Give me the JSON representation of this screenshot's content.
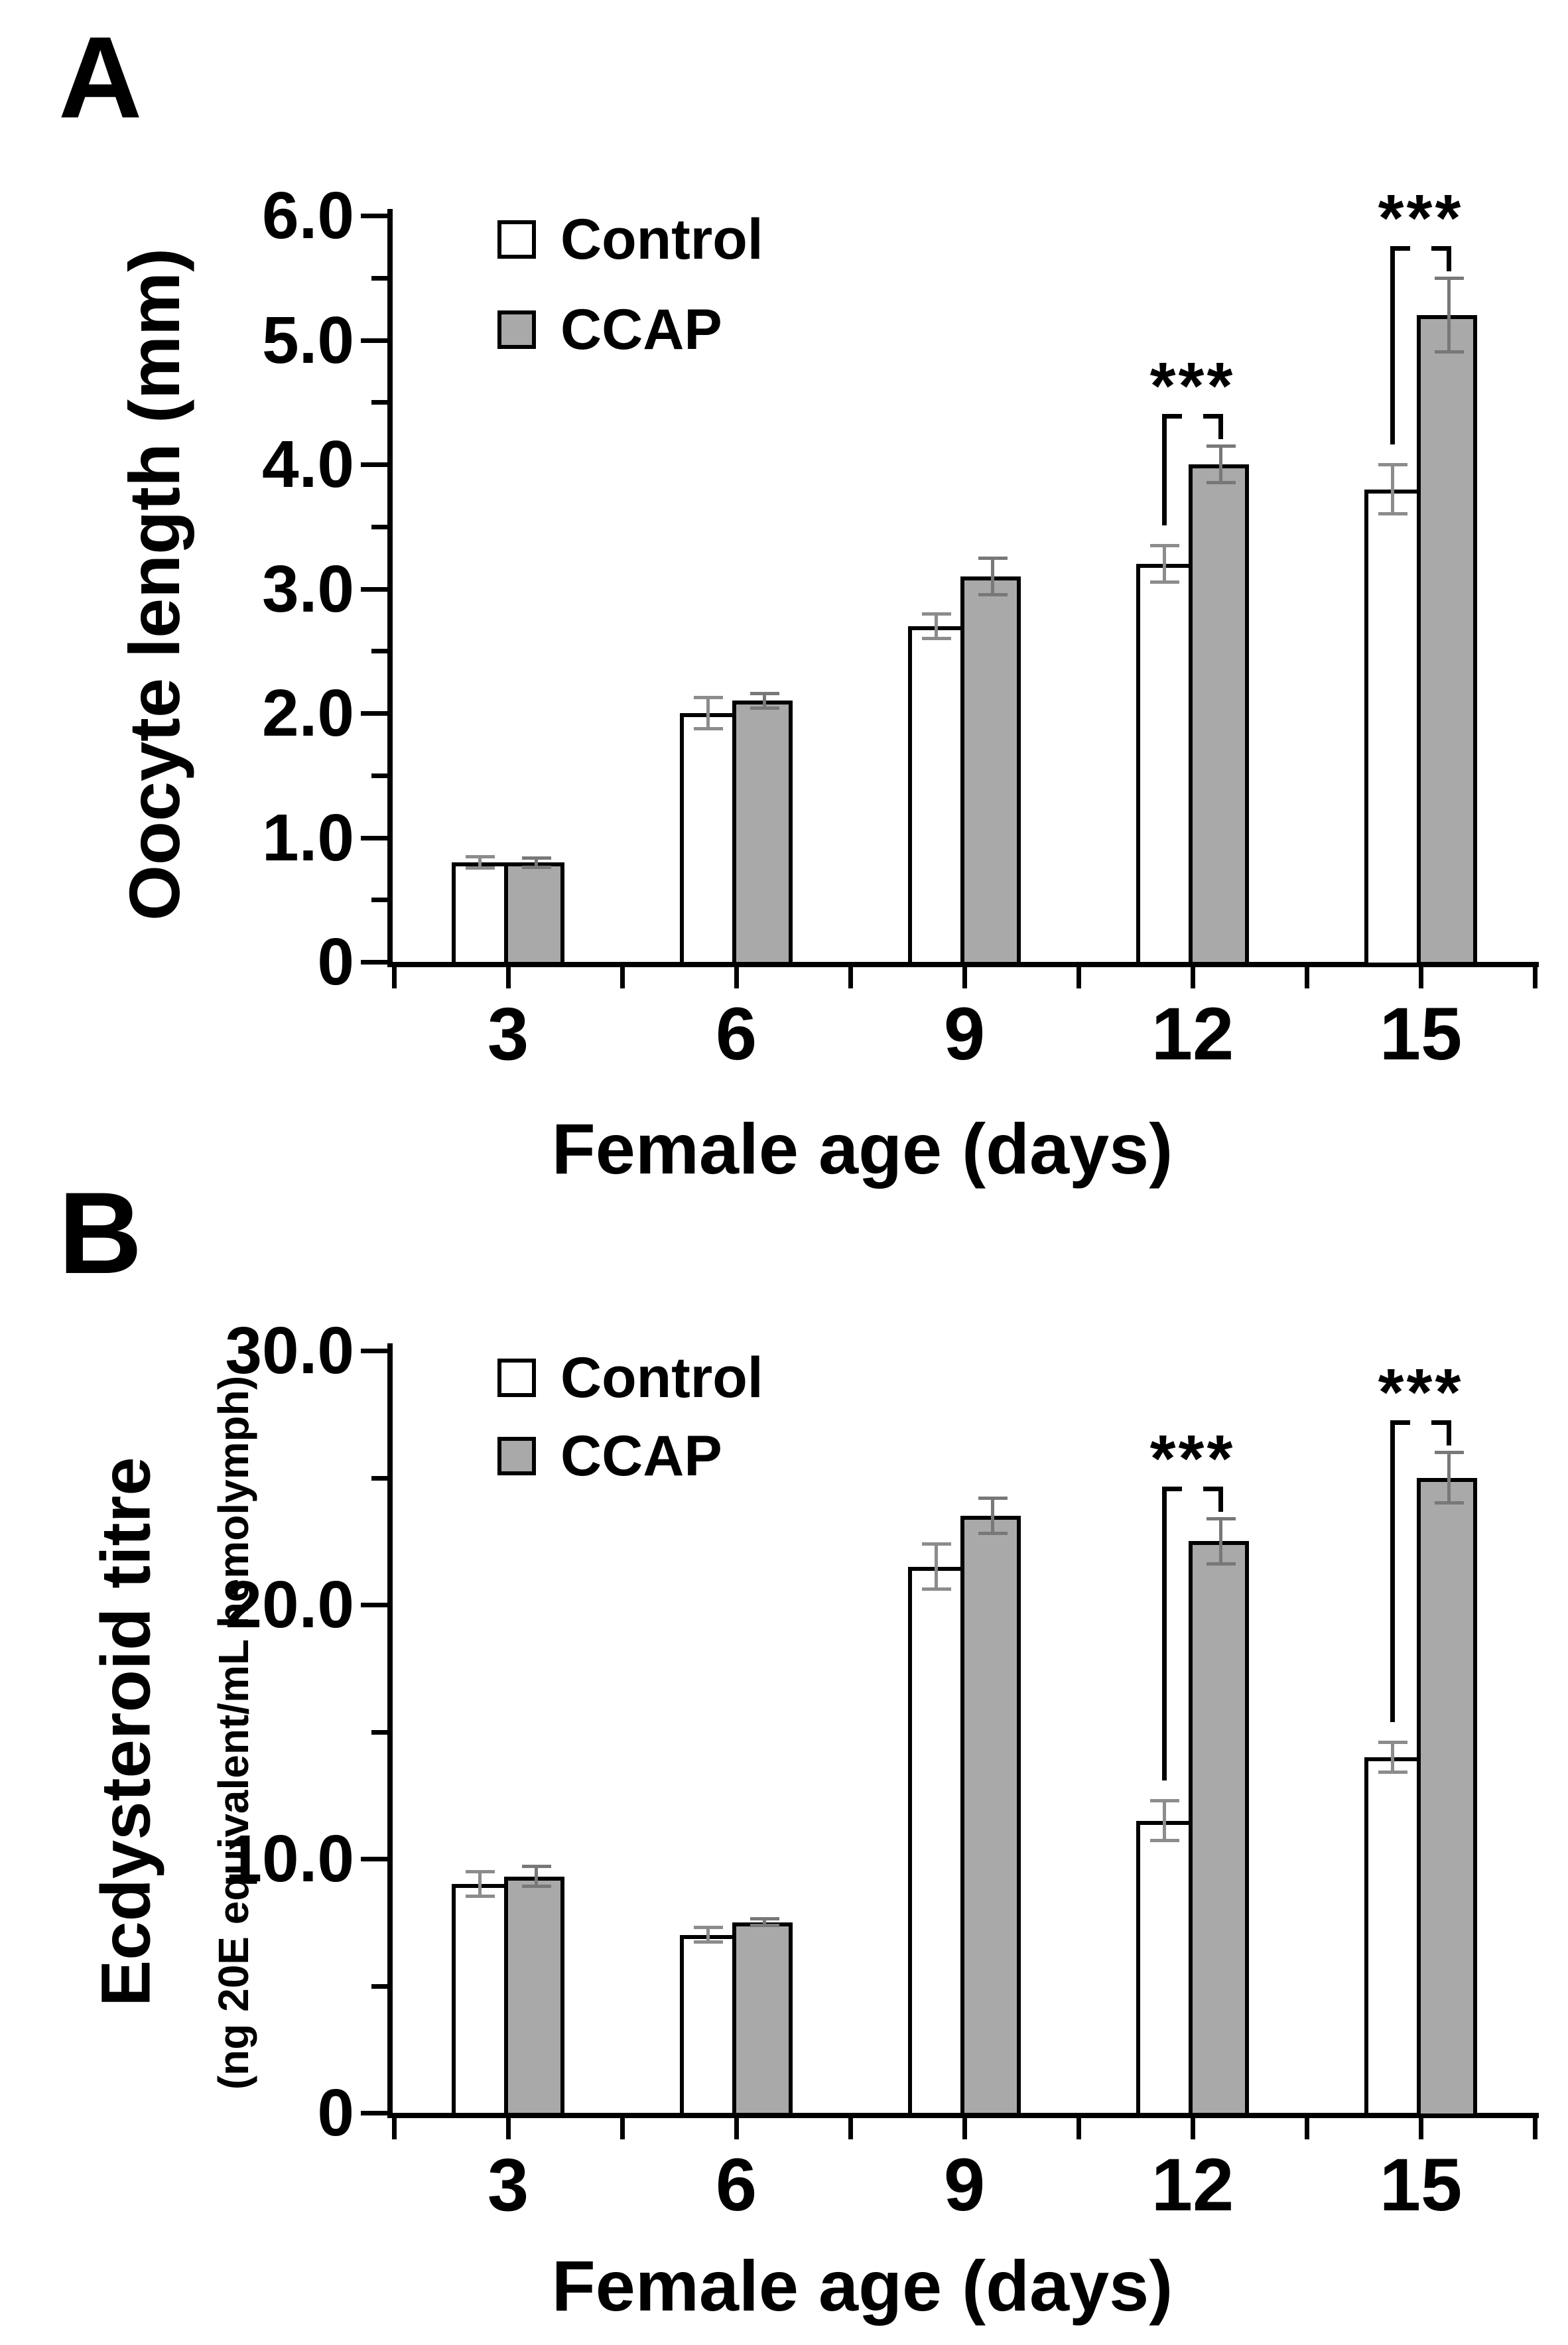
{
  "figure": {
    "background": "#ffffff"
  },
  "chart_data": [
    {
      "type": "bar",
      "panel_label": "A",
      "xlabel": "Female age (days)",
      "ylabel": "Oocyte length (mm)",
      "ylabel_sub": "",
      "ylim": [
        0,
        6.0
      ],
      "categories": [
        "3",
        "6",
        "9",
        "12",
        "15"
      ],
      "y_major_ticks": [
        {
          "value": 0,
          "label": "0"
        },
        {
          "value": 1.0,
          "label": "1.0"
        },
        {
          "value": 2.0,
          "label": "2.0"
        },
        {
          "value": 3.0,
          "label": "3.0"
        },
        {
          "value": 4.0,
          "label": "4.0"
        },
        {
          "value": 5.0,
          "label": "5.0"
        },
        {
          "value": 6.0,
          "label": "6.0"
        }
      ],
      "y_minor_ticks": [
        0.5,
        1.5,
        2.5,
        3.5,
        4.5,
        5.5
      ],
      "grid": false,
      "legend_position": "top-left-inside",
      "series": [
        {
          "name": "Control",
          "fill": "#ffffff",
          "edge": "#000000",
          "error_color": "#8c8c8c",
          "values": [
            0.8,
            2.0,
            2.7,
            3.2,
            3.8
          ],
          "errors": [
            0.05,
            0.13,
            0.1,
            0.15,
            0.2
          ]
        },
        {
          "name": "CCAP",
          "fill": "#a9a9a9",
          "edge": "#000000",
          "error_color": "#787878",
          "values": [
            0.8,
            2.1,
            3.1,
            4.0,
            5.2
          ],
          "errors": [
            0.04,
            0.06,
            0.15,
            0.15,
            0.3
          ]
        }
      ],
      "significance": [
        {
          "category_index": 3,
          "label": "***"
        },
        {
          "category_index": 4,
          "label": "***"
        }
      ]
    },
    {
      "type": "bar",
      "panel_label": "B",
      "xlabel": "Female age (days)",
      "ylabel": "Ecdysteroid titre",
      "ylabel_sub": "(ng 20E equivalent/mL hemolymph)",
      "ylim": [
        0,
        30.0
      ],
      "categories": [
        "3",
        "6",
        "9",
        "12",
        "15"
      ],
      "y_major_ticks": [
        {
          "value": 0,
          "label": "0"
        },
        {
          "value": 10.0,
          "label": "10.0"
        },
        {
          "value": 20.0,
          "label": "20.0"
        },
        {
          "value": 30.0,
          "label": "30.0"
        }
      ],
      "y_minor_ticks": [
        5.0,
        15.0,
        25.0
      ],
      "grid": false,
      "legend_position": "top-left-inside",
      "series": [
        {
          "name": "Control",
          "fill": "#ffffff",
          "edge": "#000000",
          "error_color": "#8c8c8c",
          "values": [
            9.0,
            7.0,
            21.5,
            11.5,
            14.0
          ],
          "errors": [
            0.5,
            0.3,
            0.9,
            0.8,
            0.6
          ]
        },
        {
          "name": "CCAP",
          "fill": "#a9a9a9",
          "edge": "#000000",
          "error_color": "#787878",
          "values": [
            9.3,
            7.5,
            23.5,
            22.5,
            25.0
          ],
          "errors": [
            0.4,
            0.15,
            0.7,
            0.9,
            1.0
          ]
        }
      ],
      "significance": [
        {
          "category_index": 3,
          "label": "***"
        },
        {
          "category_index": 4,
          "label": "***"
        }
      ]
    }
  ]
}
